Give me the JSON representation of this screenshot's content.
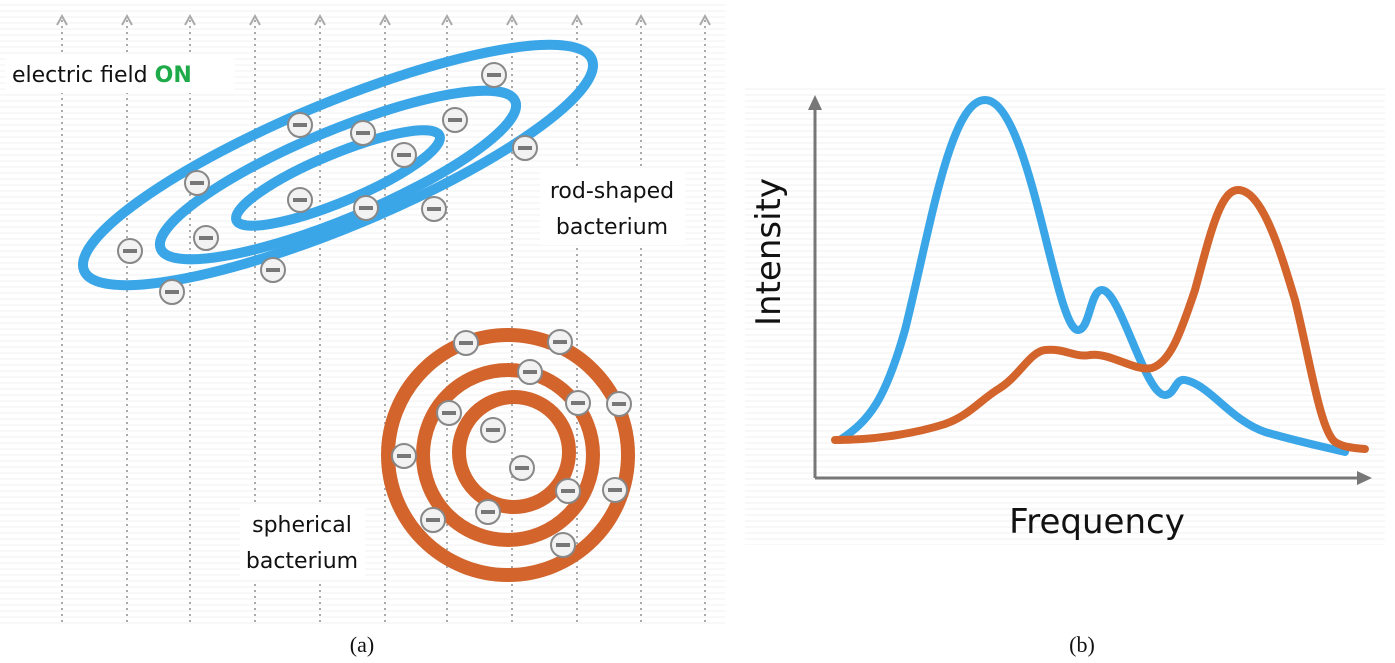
{
  "panel_a": {
    "field_label": "electric field",
    "field_state": "ON",
    "rod_label": [
      "rod-shaped",
      "bacterium"
    ],
    "sphere_label": [
      "spherical",
      "bacterium"
    ],
    "caption": "(a)"
  },
  "panel_b": {
    "y_label": "Intensity",
    "x_label": "Frequency",
    "caption": "(b)"
  }
}
